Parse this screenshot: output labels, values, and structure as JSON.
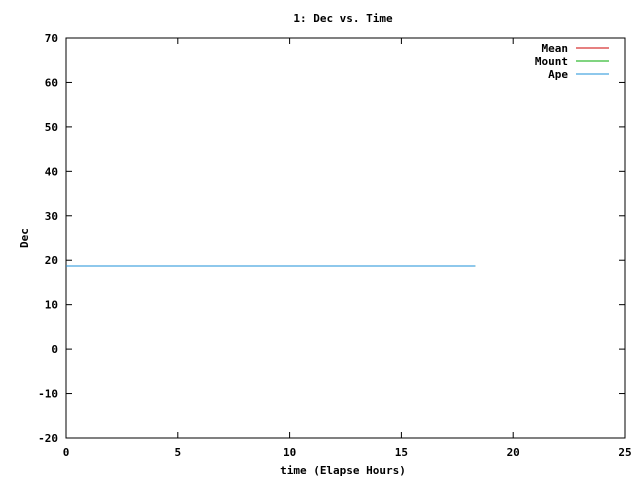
{
  "chart_data": {
    "type": "line",
    "title": "1: Dec vs. Time",
    "xlabel": "time (Elapse Hours)",
    "ylabel": "Dec",
    "xlim": [
      0,
      25
    ],
    "ylim": [
      -20,
      70
    ],
    "xticks": [
      0,
      5,
      10,
      15,
      20,
      25
    ],
    "yticks": [
      -20,
      -10,
      0,
      10,
      20,
      30,
      40,
      50,
      60,
      70
    ],
    "grid": false,
    "legend_position": "top-right",
    "series": [
      {
        "name": "Mean",
        "color": "#cc0000",
        "points": [
          [
            0,
            18.7
          ],
          [
            18.3,
            18.7
          ]
        ]
      },
      {
        "name": "Mount",
        "color": "#00aa00",
        "points": [
          [
            0,
            18.7
          ],
          [
            18.3,
            18.7
          ]
        ]
      },
      {
        "name": "Ape",
        "color": "#1e90d8",
        "points": [
          [
            0,
            18.7
          ],
          [
            18.3,
            18.7
          ]
        ]
      }
    ]
  }
}
